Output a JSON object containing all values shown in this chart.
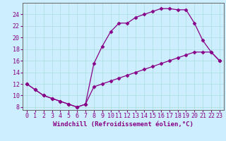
{
  "xlabel": "Windchill (Refroidissement éolien,°C)",
  "bg_color": "#cceeff",
  "grid_color": "#aadddd",
  "line_color": "#880088",
  "spine_color": "#666666",
  "xlim": [
    -0.5,
    23.5
  ],
  "ylim": [
    7.5,
    26.0
  ],
  "yticks": [
    8,
    10,
    12,
    14,
    16,
    18,
    20,
    22,
    24
  ],
  "xticks": [
    0,
    1,
    2,
    3,
    4,
    5,
    6,
    7,
    8,
    9,
    10,
    11,
    12,
    13,
    14,
    15,
    16,
    17,
    18,
    19,
    20,
    21,
    22,
    23
  ],
  "curve1_x": [
    0,
    1,
    2,
    3,
    4,
    5,
    6,
    7,
    8,
    9,
    10,
    11,
    12,
    13,
    14,
    15,
    16,
    17,
    18,
    19,
    20,
    21,
    22,
    23
  ],
  "curve1_y": [
    12,
    11,
    10,
    9.5,
    9,
    8.5,
    8,
    8.5,
    15.5,
    18.5,
    21.0,
    22.5,
    22.5,
    23.5,
    24.0,
    24.5,
    25.0,
    25.0,
    24.8,
    24.8,
    22.5,
    19.5,
    17.5,
    16.0
  ],
  "curve2_x": [
    0,
    1,
    2,
    3,
    4,
    5,
    6,
    7,
    8,
    9,
    10,
    11,
    12,
    13,
    14,
    15,
    16,
    17,
    18,
    19,
    20,
    21,
    22,
    23
  ],
  "curve2_y": [
    12,
    11,
    10,
    9.5,
    9,
    8.5,
    8,
    8.5,
    11.5,
    12.0,
    12.5,
    13.0,
    13.5,
    14.0,
    14.5,
    15.0,
    15.5,
    16.0,
    16.5,
    17.0,
    17.5,
    17.5,
    17.5,
    16.0
  ],
  "tick_fontsize": 6.0,
  "xlabel_fontsize": 6.5
}
